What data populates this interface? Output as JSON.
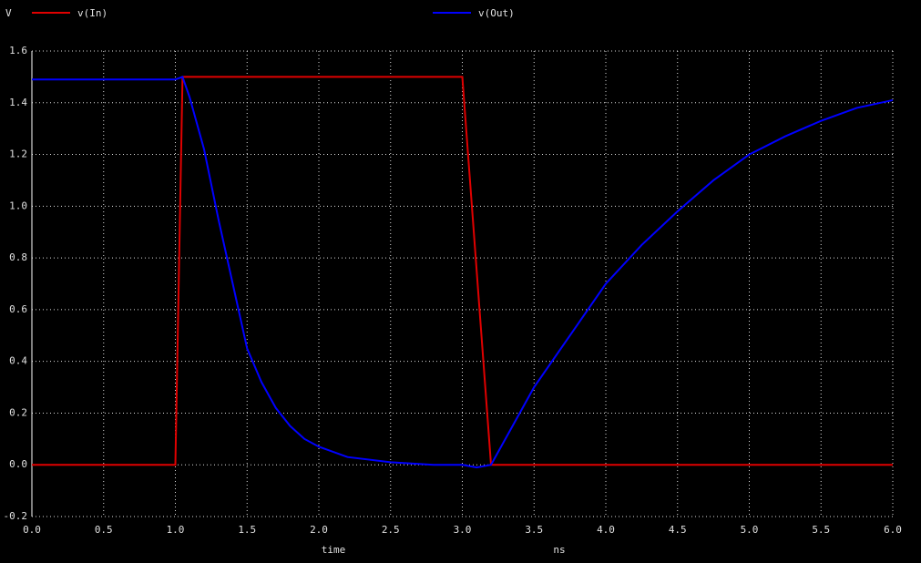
{
  "chart_data": {
    "type": "line",
    "ylabel": "V",
    "xlabel": "time",
    "xunit": "ns",
    "series": [
      {
        "name": "v(In)",
        "color": "#e00000",
        "x": [
          0,
          1.0,
          1.05,
          3.0,
          3.2,
          6.0
        ],
        "values": [
          0,
          0,
          1.5,
          1.5,
          0,
          0
        ]
      },
      {
        "name": "v(Out)",
        "color": "#0000ff",
        "x": [
          0,
          1.0,
          1.05,
          1.1,
          1.2,
          1.3,
          1.4,
          1.5,
          1.6,
          1.7,
          1.8,
          1.9,
          2.0,
          2.2,
          2.5,
          2.8,
          3.0,
          3.1,
          3.2,
          3.3,
          3.5,
          3.75,
          4.0,
          4.25,
          4.5,
          4.75,
          5.0,
          5.25,
          5.5,
          5.75,
          6.0
        ],
        "values": [
          1.49,
          1.49,
          1.5,
          1.42,
          1.22,
          0.95,
          0.7,
          0.45,
          0.32,
          0.22,
          0.15,
          0.1,
          0.07,
          0.03,
          0.01,
          0.0,
          0.0,
          -0.01,
          0.0,
          0.1,
          0.3,
          0.5,
          0.7,
          0.85,
          0.98,
          1.1,
          1.2,
          1.27,
          1.33,
          1.38,
          1.41
        ]
      }
    ],
    "xlim": [
      0,
      6
    ],
    "xticks": [
      {
        "value": 0,
        "label": "0.0"
      },
      0.5,
      {
        "value": 1,
        "label": "1.0"
      },
      1.5,
      {
        "value": 2,
        "label": "2.0"
      },
      2.5,
      {
        "value": 3,
        "label": "3.0"
      },
      3.5,
      {
        "value": 4,
        "label": "4.0"
      },
      4.5,
      {
        "value": 5,
        "label": "5.0"
      },
      5.5,
      {
        "value": 6,
        "label": "6.0"
      }
    ],
    "ylim": [
      -0.2,
      1.6
    ],
    "yticks": [
      -0.2,
      {
        "value": 0,
        "label": "0.0"
      },
      0.2,
      0.4,
      0.6,
      0.8,
      {
        "value": 1,
        "label": "1.0"
      },
      1.2,
      1.4,
      1.6
    ],
    "grid": true
  }
}
